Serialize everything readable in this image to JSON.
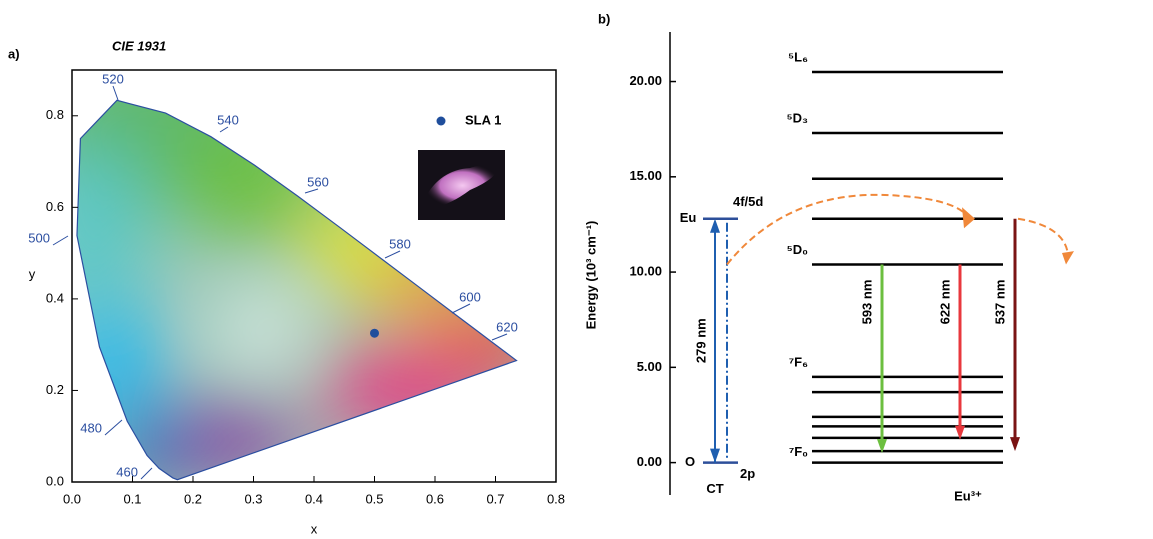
{
  "chart_data": [
    {
      "type": "scatter",
      "panel": "a)",
      "title": "CIE 1931",
      "xlabel": "x",
      "ylabel": "y",
      "xlim": [
        0,
        0.8
      ],
      "ylim": [
        0,
        0.9
      ],
      "xticks": [
        {
          "value": 0,
          "label": "0.0"
        },
        0.1,
        0.2,
        0.3,
        0.4,
        0.5,
        0.6,
        0.7,
        0.8
      ],
      "yticks": [
        {
          "value": 0,
          "label": "0.0"
        },
        0.2,
        0.4,
        0.6,
        0.8
      ],
      "locus_labels": [
        460,
        480,
        500,
        520,
        540,
        560,
        580,
        600,
        620
      ],
      "series": [
        {
          "name": "SLA 1",
          "color": "#1f4e9c",
          "x": [
            0.5
          ],
          "y": [
            0.325
          ]
        }
      ]
    },
    {
      "type": "energy_level",
      "panel": "b)",
      "ylabel": "Energy (10³ cm⁻¹)",
      "xlabel": "Eu³⁺",
      "ylim": [
        -1.7,
        22.6
      ],
      "yticks": [
        {
          "value": 0,
          "label": "0.00"
        },
        {
          "value": 5,
          "label": "5.00"
        },
        {
          "value": 10,
          "label": "10.00"
        },
        {
          "value": 15,
          "label": "15.00"
        },
        {
          "value": 20,
          "label": "20.00"
        }
      ],
      "levels": [
        20.5,
        17.3,
        14.9,
        12.8,
        10.4,
        4.5,
        3.7,
        2.4,
        1.9,
        1.3,
        0.6,
        0.0
      ],
      "level_labels": [
        "⁵L₆",
        "⁵D₃",
        null,
        null,
        "⁵D₀",
        "⁷F₆",
        null,
        null,
        null,
        null,
        null,
        "⁷F₀"
      ],
      "excitation": {
        "label": "279 nm",
        "from": 0,
        "to": 12.8,
        "color": "#1f5fb0"
      },
      "ct_labels": {
        "lower_left": "O",
        "lower_right": "2p",
        "upper_left": "Eu",
        "upper_right": "4f/5d",
        "bottom": "CT"
      },
      "transitions": [
        {
          "label": "593 nm",
          "from": 10.4,
          "to": 0.5,
          "color": "#6cbf3f"
        },
        {
          "label": "622 nm",
          "from": 10.4,
          "to": 1.2,
          "color": "#e8383d"
        },
        {
          "label": "537 nm",
          "from": 12.8,
          "to": 0.6,
          "color": "#7a1414"
        }
      ]
    }
  ]
}
